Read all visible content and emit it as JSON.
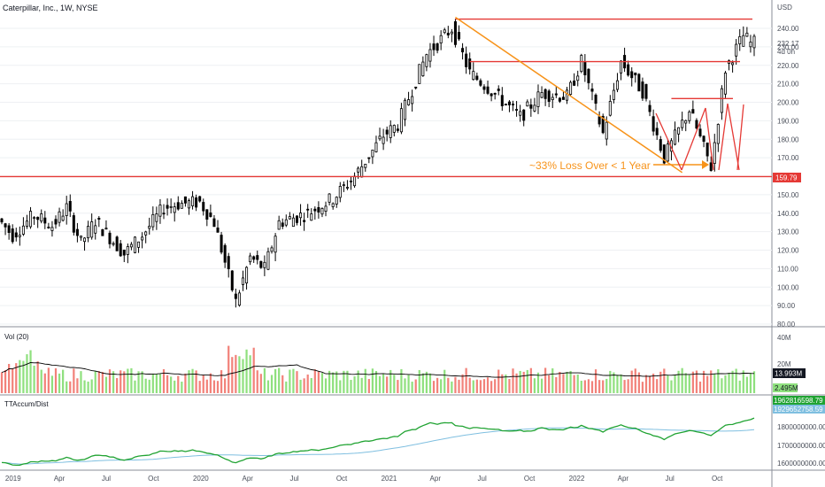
{
  "header": {
    "symbol_title": "Caterpillar, Inc., 1W, NYSE",
    "currency": "USD"
  },
  "colors": {
    "up": "#26a69a",
    "down": "#000000",
    "level_line": "#e53935",
    "trendline": "#f7931a",
    "vol_up": "#8fe07e",
    "vol_down": "#f2827a",
    "vol_ma": "#000000",
    "accum_line": "#20a332",
    "accum_ma": "#7fbfe0"
  },
  "price_axis": {
    "ticks": [
      "240.00",
      "230.00",
      "220.00",
      "210.00",
      "200.00",
      "190.00",
      "180.00",
      "170.00",
      "160.00",
      "150.00",
      "140.00",
      "130.00",
      "120.00",
      "110.00",
      "100.00",
      "90.00",
      "80.00"
    ],
    "current_price": "232.17",
    "countdown": "4d 0h",
    "level_tag": "159.79"
  },
  "annotation": "~33% Loss Over < 1 Year",
  "volume_pane": {
    "title": "Vol (20)",
    "ticks": [
      "40M",
      "20M"
    ],
    "current_value": "13.993M",
    "small_value": "2.495M"
  },
  "accum_pane": {
    "title": "TTAccum/Dist",
    "ticks": [
      "1800000000.00",
      "1700000000.00",
      "1600000000.00"
    ],
    "value_1": "1962816598.79",
    "value_2": "1929652758.59"
  },
  "time_axis": {
    "labels": [
      "2019",
      "Apr",
      "Jul",
      "Oct",
      "2020",
      "Apr",
      "Jul",
      "Oct",
      "2021",
      "Apr",
      "Jul",
      "Oct",
      "2022",
      "Apr",
      "Jul",
      "Oct"
    ]
  },
  "chart_data": {
    "type": "candlestick",
    "title": "Caterpillar, Inc., 1W, NYSE",
    "xlabel": "",
    "ylabel": "USD",
    "ylim": [
      80,
      248
    ],
    "x_range": [
      "2018-12-10",
      "2022-12-12"
    ],
    "horizontal_levels": [
      245,
      222,
      202,
      159.79
    ],
    "trendline": {
      "from": {
        "date": "2021-05-10",
        "price": 246
      },
      "to": {
        "date": "2022-07-25",
        "price": 162
      }
    },
    "anchor_prices": [
      {
        "date": "2018-12-10",
        "price": 137
      },
      {
        "date": "2019-01-07",
        "price": 128
      },
      {
        "date": "2019-02-18",
        "price": 139
      },
      {
        "date": "2019-03-25",
        "price": 133
      },
      {
        "date": "2019-04-22",
        "price": 143
      },
      {
        "date": "2019-05-20",
        "price": 124
      },
      {
        "date": "2019-06-17",
        "price": 136
      },
      {
        "date": "2019-08-12",
        "price": 118
      },
      {
        "date": "2019-09-16",
        "price": 128
      },
      {
        "date": "2019-10-28",
        "price": 143
      },
      {
        "date": "2019-11-25",
        "price": 145
      },
      {
        "date": "2020-01-06",
        "price": 146
      },
      {
        "date": "2020-02-03",
        "price": 135
      },
      {
        "date": "2020-03-16",
        "price": 92
      },
      {
        "date": "2020-04-13",
        "price": 116
      },
      {
        "date": "2020-05-11",
        "price": 110
      },
      {
        "date": "2020-06-08",
        "price": 135
      },
      {
        "date": "2020-08-03",
        "price": 140
      },
      {
        "date": "2020-09-21",
        "price": 148
      },
      {
        "date": "2020-11-02",
        "price": 160
      },
      {
        "date": "2020-12-28",
        "price": 182
      },
      {
        "date": "2021-01-25",
        "price": 188
      },
      {
        "date": "2021-03-22",
        "price": 226
      },
      {
        "date": "2021-05-10",
        "price": 240
      },
      {
        "date": "2021-06-14",
        "price": 216
      },
      {
        "date": "2021-07-19",
        "price": 208
      },
      {
        "date": "2021-09-20",
        "price": 192
      },
      {
        "date": "2021-11-01",
        "price": 205
      },
      {
        "date": "2021-12-20",
        "price": 203
      },
      {
        "date": "2022-01-17",
        "price": 222
      },
      {
        "date": "2022-02-28",
        "price": 183
      },
      {
        "date": "2022-04-04",
        "price": 222
      },
      {
        "date": "2022-05-16",
        "price": 206
      },
      {
        "date": "2022-06-27",
        "price": 170
      },
      {
        "date": "2022-08-15",
        "price": 196
      },
      {
        "date": "2022-09-26",
        "price": 165
      },
      {
        "date": "2022-10-24",
        "price": 218
      },
      {
        "date": "2022-11-28",
        "price": 236
      },
      {
        "date": "2022-12-12",
        "price": 232
      }
    ],
    "volume_ylim": [
      0,
      45
    ],
    "volume_unit": "M",
    "accum_ylim": [
      1560000000,
      2050000000
    ]
  }
}
